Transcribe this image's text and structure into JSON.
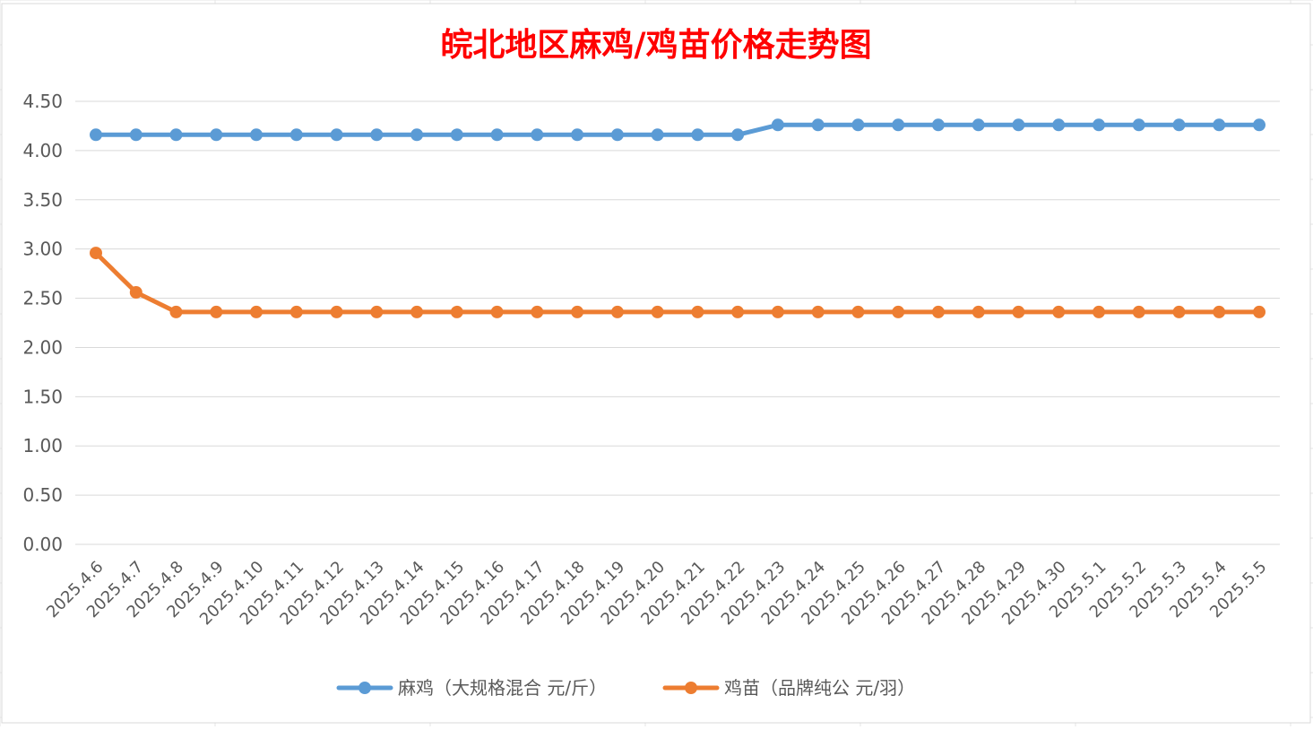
{
  "chart_data": {
    "type": "line",
    "title": "皖北地区麻鸡/鸡苗价格走势图",
    "xlabel": "",
    "ylabel": "",
    "ylim": [
      0,
      4.5
    ],
    "y_ticks": [
      "0.00",
      "0.50",
      "1.00",
      "1.50",
      "2.00",
      "2.50",
      "3.00",
      "3.50",
      "4.00",
      "4.50"
    ],
    "grid": true,
    "legend_position": "bottom",
    "categories": [
      "2025.4.6",
      "2025.4.7",
      "2025.4.8",
      "2025.4.9",
      "2025.4.10",
      "2025.4.11",
      "2025.4.12",
      "2025.4.13",
      "2025.4.14",
      "2025.4.15",
      "2025.4.16",
      "2025.4.17",
      "2025.4.18",
      "2025.4.19",
      "2025.4.20",
      "2025.4.21",
      "2025.4.22",
      "2025.4.23",
      "2025.4.24",
      "2025.4.25",
      "2025.4.26",
      "2025.4.27",
      "2025.4.28",
      "2025.4.29",
      "2025.4.30",
      "2025.5.1",
      "2025.5.2",
      "2025.5.3",
      "2025.5.4",
      "2025.5.5"
    ],
    "series": [
      {
        "name": "麻鸡（大规格混合 元/斤）",
        "color": "#5b9bd5",
        "values": [
          4.16,
          4.16,
          4.16,
          4.16,
          4.16,
          4.16,
          4.16,
          4.16,
          4.16,
          4.16,
          4.16,
          4.16,
          4.16,
          4.16,
          4.16,
          4.16,
          4.16,
          4.26,
          4.26,
          4.26,
          4.26,
          4.26,
          4.26,
          4.26,
          4.26,
          4.26,
          4.26,
          4.26,
          4.26,
          4.26
        ]
      },
      {
        "name": "鸡苗（品牌纯公 元/羽）",
        "color": "#ed7d31",
        "values": [
          2.96,
          2.56,
          2.36,
          2.36,
          2.36,
          2.36,
          2.36,
          2.36,
          2.36,
          2.36,
          2.36,
          2.36,
          2.36,
          2.36,
          2.36,
          2.36,
          2.36,
          2.36,
          2.36,
          2.36,
          2.36,
          2.36,
          2.36,
          2.36,
          2.36,
          2.36,
          2.36,
          2.36,
          2.36,
          2.36
        ]
      }
    ]
  }
}
